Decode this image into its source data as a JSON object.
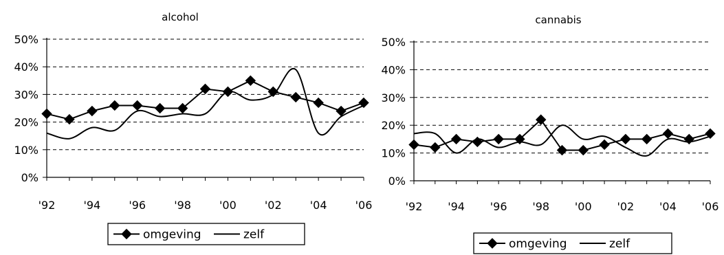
{
  "chart_data": [
    {
      "type": "line",
      "title": "alcohol",
      "xlabel": "",
      "ylabel": "",
      "categories": [
        "'92",
        "'93",
        "'94",
        "'95",
        "'96",
        "'97",
        "'98",
        "'99",
        "'00",
        "'01",
        "'02",
        "'03",
        "'04",
        "'05",
        "'06"
      ],
      "x_tick_labels": [
        "'92",
        "'94",
        "'96",
        "'98",
        "'00",
        "'02",
        "'04",
        "'06"
      ],
      "y_tick_labels": [
        "0%",
        "10%",
        "20%",
        "30%",
        "40%",
        "50%"
      ],
      "ylim": [
        0,
        50
      ],
      "grid": true,
      "legend": "bottom",
      "series": [
        {
          "name": "omgeving",
          "marker": "diamond",
          "smooth": false,
          "values": [
            23,
            21,
            24,
            26,
            26,
            25,
            25,
            32,
            31,
            35,
            31,
            29,
            27,
            24,
            27
          ]
        },
        {
          "name": "zelf",
          "marker": "none",
          "smooth": true,
          "values": [
            16,
            14,
            18,
            17,
            24,
            22,
            23,
            23,
            31,
            28,
            30,
            39,
            16,
            22,
            26
          ]
        }
      ]
    },
    {
      "type": "line",
      "title": "cannabis",
      "xlabel": "",
      "ylabel": "",
      "categories": [
        "'92",
        "'93",
        "'94",
        "'95",
        "'96",
        "'97",
        "'98",
        "'99",
        "'00",
        "'01",
        "'02",
        "'03",
        "'04",
        "'05",
        "'06"
      ],
      "x_tick_labels": [
        "'92",
        "'94",
        "'96",
        "'98",
        "'00",
        "'02",
        "'04",
        "'06"
      ],
      "y_tick_labels": [
        "0%",
        "10%",
        "20%",
        "30%",
        "40%",
        "50%"
      ],
      "ylim": [
        0,
        50
      ],
      "grid": true,
      "legend": "bottom",
      "series": [
        {
          "name": "omgeving",
          "marker": "diamond",
          "smooth": false,
          "values": [
            13,
            12,
            15,
            14,
            15,
            15,
            22,
            11,
            11,
            13,
            15,
            15,
            17,
            15,
            17
          ]
        },
        {
          "name": "zelf",
          "marker": "none",
          "smooth": true,
          "values": [
            17,
            17,
            10,
            15,
            12,
            14,
            13,
            20,
            15,
            16,
            12,
            9,
            15,
            14,
            16
          ]
        }
      ]
    }
  ]
}
